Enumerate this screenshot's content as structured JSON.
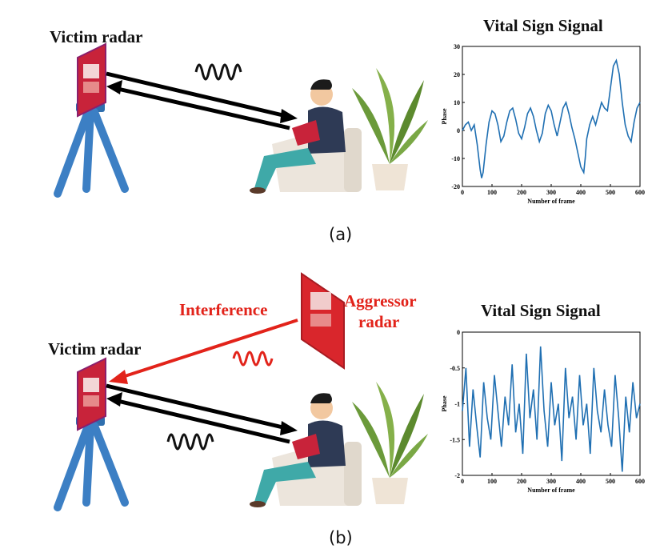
{
  "panel_a": {
    "victim_label": "Victim radar",
    "chart_title": "Vital Sign Signal",
    "caption": "(a)"
  },
  "panel_b": {
    "victim_label": "Victim radar",
    "interference_label": "Interference",
    "aggressor_label_line1": "Aggressor",
    "aggressor_label_line2": "radar",
    "chart_title": "Vital Sign Signal",
    "caption": "(b)"
  },
  "colors": {
    "signal_line": "#1f6fb2",
    "interference": "#e2231a",
    "tripod": "#3c7fc4",
    "radar_board": "#c8233a"
  },
  "chart_data": [
    {
      "type": "line",
      "title": "Vital Sign Signal",
      "xlabel": "Number of frame",
      "ylabel": "Phase",
      "xlim": [
        0,
        600
      ],
      "ylim": [
        -20,
        30
      ],
      "xticks": [
        0,
        100,
        200,
        300,
        400,
        500,
        600
      ],
      "yticks": [
        -20,
        -10,
        0,
        10,
        20,
        30
      ],
      "series": [
        {
          "x": [
            0,
            10,
            20,
            30,
            40,
            50,
            60,
            65,
            70,
            80,
            90,
            100,
            110,
            120,
            130,
            140,
            150,
            160,
            170,
            180,
            190,
            200,
            210,
            220,
            230,
            240,
            250,
            260,
            270,
            280,
            290,
            300,
            310,
            320,
            330,
            340,
            350,
            360,
            370,
            380,
            390,
            400,
            410,
            415,
            420,
            430,
            440,
            450,
            460,
            470,
            480,
            490,
            500,
            510,
            520,
            530,
            540,
            550,
            560,
            570,
            580,
            590,
            600
          ],
          "values": [
            0,
            2,
            3,
            0,
            2,
            -5,
            -14,
            -17,
            -15,
            -5,
            3,
            7,
            6,
            2,
            -4,
            -2,
            3,
            7,
            8,
            4,
            -1,
            -3,
            1,
            6,
            8,
            5,
            0,
            -4,
            -1,
            6,
            9,
            7,
            2,
            -2,
            3,
            8,
            10,
            6,
            1,
            -3,
            -8,
            -13,
            -15,
            -10,
            -3,
            2,
            5,
            2,
            6,
            10,
            8,
            7,
            15,
            23,
            25,
            20,
            10,
            2,
            -2,
            -4,
            3,
            8,
            10
          ]
        }
      ]
    },
    {
      "type": "line",
      "title": "Vital Sign Signal",
      "xlabel": "Number of frame",
      "ylabel": "Phase",
      "xlim": [
        0,
        600
      ],
      "ylim": [
        -2,
        0
      ],
      "xticks": [
        0,
        100,
        200,
        300,
        400,
        500,
        600
      ],
      "yticks": [
        -2,
        -1.5,
        -1,
        -0.5,
        0
      ],
      "series": [
        {
          "x": [
            0,
            12,
            24,
            36,
            48,
            60,
            72,
            84,
            96,
            108,
            120,
            132,
            144,
            156,
            168,
            180,
            192,
            204,
            216,
            228,
            240,
            252,
            264,
            276,
            288,
            300,
            312,
            324,
            336,
            348,
            360,
            372,
            384,
            396,
            408,
            420,
            432,
            444,
            456,
            468,
            480,
            492,
            504,
            516,
            528,
            540,
            552,
            564,
            576,
            588,
            600
          ],
          "values": [
            -1.1,
            -0.5,
            -1.6,
            -0.8,
            -1.3,
            -1.75,
            -0.7,
            -1.2,
            -1.5,
            -0.6,
            -1.1,
            -1.6,
            -0.9,
            -1.3,
            -0.45,
            -1.4,
            -1.0,
            -1.7,
            -0.3,
            -1.2,
            -0.8,
            -1.5,
            -0.2,
            -1.1,
            -1.6,
            -0.7,
            -1.3,
            -1.0,
            -1.8,
            -0.5,
            -1.2,
            -0.9,
            -1.5,
            -0.6,
            -1.3,
            -1.0,
            -1.7,
            -0.5,
            -1.1,
            -1.4,
            -0.8,
            -1.3,
            -1.6,
            -0.6,
            -1.2,
            -1.95,
            -0.9,
            -1.4,
            -0.7,
            -1.2,
            -1.0
          ]
        }
      ]
    }
  ]
}
